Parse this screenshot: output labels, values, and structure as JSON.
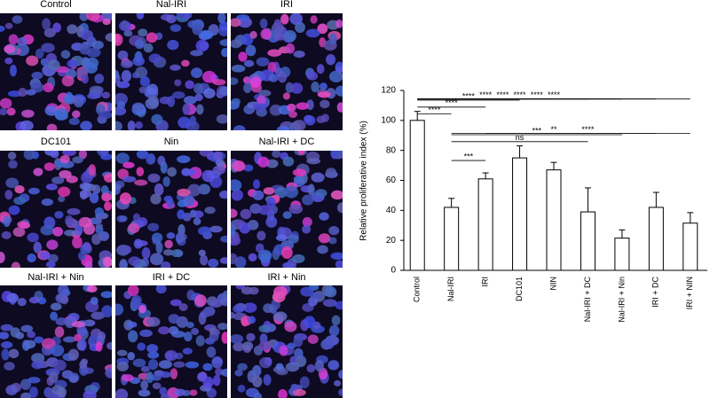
{
  "image_panels": [
    "Control",
    "Nal-IRI",
    "IRI",
    "DC101",
    "Nin",
    "Nal-IRI + DC",
    "Nal-IRI + Nin",
    "IRI + DC",
    "IRI + Nin"
  ],
  "chart_data": {
    "type": "bar",
    "y_label": "Relative proliferative index (%)",
    "categories": [
      "Control",
      "Nal-IRI",
      "IRI",
      "DC101",
      "NIN",
      "Nal-IRI + DC",
      "Nal-IRI + Nin",
      "IRI + DC",
      "IRI + NIN"
    ],
    "values": [
      100,
      42,
      61,
      75,
      67,
      39,
      21.5,
      42,
      31.5
    ],
    "errors": [
      6,
      6,
      4,
      8,
      5,
      16,
      5.5,
      10,
      7
    ],
    "color": "#ffffff",
    "ylim": [
      0,
      120
    ],
    "yticks": [
      0,
      20,
      40,
      60,
      80,
      100,
      120
    ],
    "comparisons": [
      {
        "from": 0,
        "to": 8,
        "label": "****"
      },
      {
        "from": 0,
        "to": 7,
        "label": "****"
      },
      {
        "from": 0,
        "to": 6,
        "label": "****"
      },
      {
        "from": 0,
        "to": 5,
        "label": "****"
      },
      {
        "from": 0,
        "to": 4,
        "label": "****"
      },
      {
        "from": 0,
        "to": 3,
        "label": "****"
      },
      {
        "from": 0,
        "to": 2,
        "label": "****"
      },
      {
        "from": 0,
        "to": 1,
        "label": "****"
      },
      {
        "from": 2,
        "to": 8,
        "label": "****"
      },
      {
        "from": 1,
        "to": 7,
        "label": "**"
      },
      {
        "from": 1,
        "to": 6,
        "label": "***"
      },
      {
        "from": 1,
        "to": 5,
        "label": "ns"
      },
      {
        "from": 1,
        "to": 2,
        "label": "***"
      }
    ]
  }
}
